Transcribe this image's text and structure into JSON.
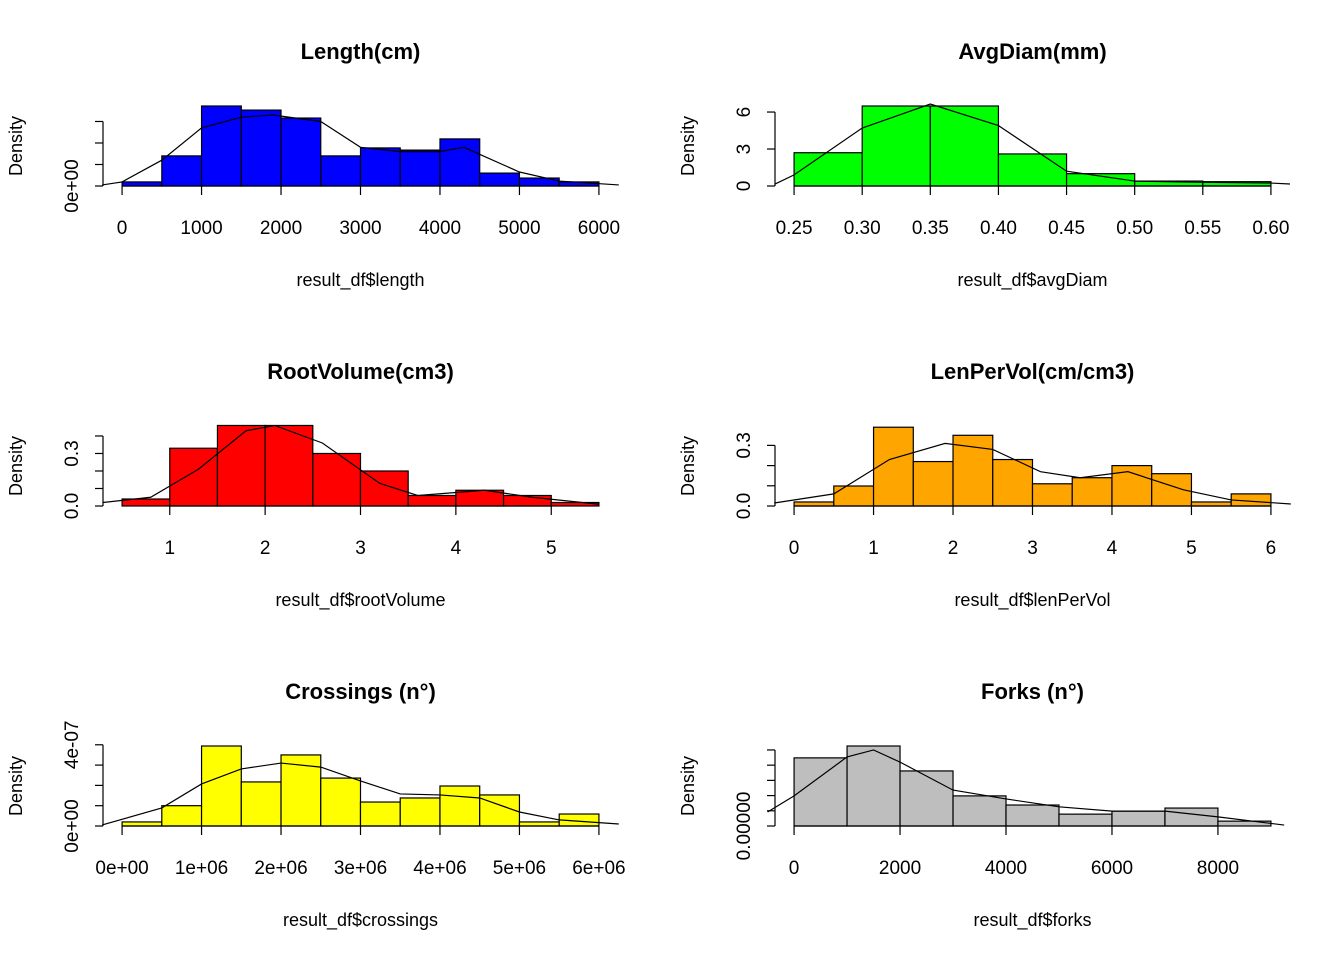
{
  "chart_data": [
    {
      "type": "histogram",
      "title": "Length(cm)",
      "xlabel": "result_df$length",
      "ylabel": "Density",
      "color": "#0000ff",
      "bins": [
        0,
        500,
        1000,
        1500,
        2000,
        2500,
        3000,
        3500,
        4000,
        4500,
        5000,
        5500,
        6000
      ],
      "values": [
        1.9e-05,
        0.00014,
        0.000372,
        0.000353,
        0.000316,
        0.00014,
        0.000177,
        0.000167,
        0.000219,
        6e-05,
        3.7e-05,
        1.9e-05
      ],
      "xlim": [
        -240,
        6240
      ],
      "ylim": [
        0,
        0.000372
      ],
      "xticks": [
        0,
        1000,
        2000,
        3000,
        4000,
        5000,
        6000
      ],
      "yticks": [
        {
          "value": 0,
          "label": "0e+00"
        }
      ],
      "yticks_unlabeled": [
        0.0001,
        0.0002,
        0.0003
      ],
      "curve": {
        "x": [
          -250,
          0,
          500,
          1000,
          1500,
          1900,
          2500,
          3000,
          3500,
          4000,
          4300,
          5000,
          5500,
          6250
        ],
        "y": [
          5e-06,
          1.9e-05,
          0.00012,
          0.00027,
          0.00032,
          0.00033,
          0.0003,
          0.00018,
          0.00016,
          0.00016,
          0.00018,
          6.5e-05,
          2.3e-05,
          5e-06
        ]
      }
    },
    {
      "type": "histogram",
      "title": "AvgDiam(mm)",
      "xlabel": "result_df$avgDiam",
      "ylabel": "Density",
      "color": "#00ff00",
      "bins": [
        0.25,
        0.3,
        0.35,
        0.4,
        0.45,
        0.5,
        0.55,
        0.6
      ],
      "values": [
        2.7,
        6.49,
        6.49,
        2.6,
        1.0,
        0.4,
        0.35
      ],
      "xlim": [
        0.236,
        0.614
      ],
      "ylim": [
        0,
        6.49
      ],
      "xticks": [
        0.25,
        {
          "value": 0.3,
          "label": "0.30"
        },
        0.35,
        {
          "value": 0.4,
          "label": "0.40"
        },
        0.45,
        {
          "value": 0.5,
          "label": "0.50"
        },
        0.55,
        {
          "value": 0.6,
          "label": "0.60"
        }
      ],
      "yticks": [
        0,
        3,
        6
      ],
      "yticks_unlabeled": [],
      "curve": {
        "x": [
          0.236,
          0.25,
          0.3,
          0.35,
          0.4,
          0.45,
          0.5,
          0.55,
          0.6,
          0.614
        ],
        "y": [
          0.16,
          0.9,
          4.7,
          6.65,
          4.9,
          1.2,
          0.4,
          0.3,
          0.24,
          0.16
        ]
      }
    },
    {
      "type": "histogram",
      "title": "RootVolume(cm3)",
      "xlabel": "result_df$rootVolume",
      "ylabel": "Density",
      "color": "#ff0000",
      "bins": [
        0.5,
        1,
        1.5,
        2,
        2.5,
        3,
        3.5,
        4,
        4.5,
        5,
        5.5
      ],
      "values": [
        0.04,
        0.33,
        0.46,
        0.46,
        0.3,
        0.2,
        0.06,
        0.09,
        0.06,
        0.02
      ],
      "xlim": [
        0.3,
        5.7
      ],
      "ylim": [
        0,
        0.457
      ],
      "xticks": [
        1,
        2,
        3,
        4,
        5
      ],
      "yticks": [
        {
          "value": 0,
          "label": "0.0"
        },
        {
          "value": 0.3,
          "label": "0.3"
        }
      ],
      "yticks_unlabeled": [
        0.1,
        0.2,
        0.4
      ],
      "curve": {
        "x": [
          0.3,
          0.8,
          1.3,
          1.8,
          2.1,
          2.6,
          3.2,
          3.6,
          4.3,
          4.8,
          5.5
        ],
        "y": [
          0.02,
          0.05,
          0.21,
          0.43,
          0.46,
          0.36,
          0.13,
          0.06,
          0.09,
          0.05,
          0.01
        ]
      }
    },
    {
      "type": "histogram",
      "title": "LenPerVol(cm/cm3)",
      "xlabel": "result_df$lenPerVol",
      "ylabel": "Density",
      "color": "#ffa500",
      "bins": [
        0,
        0.5,
        1,
        1.5,
        2,
        2.5,
        3,
        3.5,
        4,
        4.5,
        5,
        5.5,
        6
      ],
      "values": [
        0.02,
        0.099,
        0.39,
        0.22,
        0.35,
        0.23,
        0.11,
        0.14,
        0.2,
        0.16,
        0.02,
        0.06
      ],
      "xlim": [
        -0.24,
        6.24
      ],
      "ylim": [
        0,
        0.396
      ],
      "xticks": [
        0,
        1,
        2,
        3,
        4,
        5,
        6
      ],
      "yticks": [
        {
          "value": 0,
          "label": "0.0"
        },
        {
          "value": 0.3,
          "label": "0.3"
        }
      ],
      "yticks_unlabeled": [
        0.1,
        0.2
      ],
      "curve": {
        "x": [
          -0.25,
          0.5,
          1.2,
          1.9,
          2.5,
          3.1,
          3.6,
          4.2,
          4.9,
          5.5,
          6.25
        ],
        "y": [
          0.015,
          0.06,
          0.23,
          0.31,
          0.28,
          0.17,
          0.14,
          0.17,
          0.08,
          0.03,
          0.01
        ]
      }
    },
    {
      "type": "histogram",
      "title": "Crossings (n°)",
      "xlabel": "result_df$crossings",
      "ylabel": "Density",
      "color": "#ffff00",
      "bins": [
        0,
        500000,
        1000000,
        1500000,
        2000000,
        2500000,
        3000000,
        3500000,
        4000000,
        4500000,
        5000000,
        5500000,
        6000000
      ],
      "values": [
        2e-08,
        1e-07,
        3.94e-07,
        2.17e-07,
        3.5e-07,
        2.36e-07,
        1.18e-07,
        1.38e-07,
        1.97e-07,
        1.53e-07,
        2e-08,
        5.9e-08
      ],
      "xlim": [
        -240000,
        6240000
      ],
      "ylim": [
        0,
        3.94e-07
      ],
      "xticks": [
        {
          "value": 0,
          "label": "0e+00"
        },
        {
          "value": 1000000,
          "label": "1e+06"
        },
        {
          "value": 2000000,
          "label": "2e+06"
        },
        {
          "value": 3000000,
          "label": "3e+06"
        },
        {
          "value": 4000000,
          "label": "4e+06"
        },
        {
          "value": 5000000,
          "label": "5e+06"
        },
        {
          "value": 6000000,
          "label": "6e+06"
        }
      ],
      "yticks": [
        {
          "value": 0,
          "label": "0e+00"
        },
        {
          "value": 4e-07,
          "label": "4e-07"
        }
      ],
      "yticks_unlabeled": [
        1e-07,
        2e-07,
        3e-07
      ],
      "curve": {
        "x": [
          -250000,
          500000,
          1000000,
          1500000,
          2000000,
          2500000,
          3000000,
          3500000,
          4000000,
          4500000,
          5000000,
          5500000,
          6250000
        ],
        "y": [
          5e-09,
          8.9e-08,
          2.07e-07,
          2.81e-07,
          3.1e-07,
          2.9e-07,
          2.22e-07,
          1.58e-07,
          1.53e-07,
          1.38e-07,
          6.9e-08,
          3e-08,
          1e-08
        ]
      }
    },
    {
      "type": "histogram",
      "title": "Forks (n°)",
      "xlabel": "result_df$forks",
      "ylabel": "Density",
      "color": "#bebebe",
      "bins": [
        0,
        1000,
        2000,
        3000,
        4000,
        5000,
        6000,
        7000,
        8000,
        9000
      ],
      "values": [
        0.000224,
        0.000263,
        0.000181,
        9.9e-05,
        6.9e-05,
        3.9e-05,
        4.9e-05,
        5.9e-05,
        1.6e-05
      ],
      "xlim": [
        -360,
        9360
      ],
      "ylim": [
        0,
        0.000263
      ],
      "xticks": [
        0,
        2000,
        4000,
        6000,
        8000
      ],
      "yticks": [
        {
          "value": 0,
          "label": "0.00000"
        }
      ],
      "yticks_unlabeled": [
        5e-05,
        0.0001,
        0.00015,
        0.0002,
        0.00025
      ],
      "curve": {
        "x": [
          -500,
          0,
          1000,
          1500,
          2000,
          3000,
          4000,
          5000,
          6000,
          7000,
          8000,
          9250
        ],
        "y": [
          4.6e-05,
          9.9e-05,
          0.000227,
          0.00025,
          0.00021,
          0.000118,
          8.9e-05,
          6.3e-05,
          4.9e-05,
          4.9e-05,
          3e-05,
          3e-06
        ]
      }
    }
  ]
}
